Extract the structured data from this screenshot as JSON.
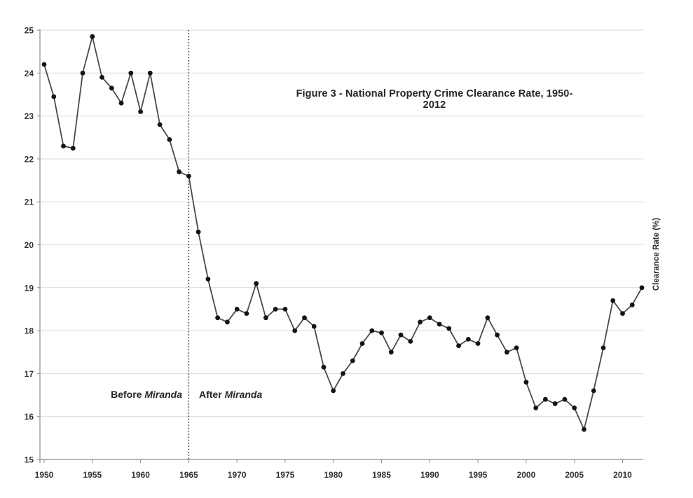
{
  "figure": {
    "title": "Figure 3 - National Property Crime Clearance Rate, 1950-2012",
    "right_axis_label": "Clearance Rate (%)",
    "annotations": {
      "before_prefix": "Before ",
      "before_italic": "Miranda",
      "after_prefix": "After ",
      "after_italic": "Miranda"
    }
  },
  "colors": {
    "line": "#4a4a4a",
    "marker": "#141414",
    "gridline": "#d9d9d9",
    "axis": "#8c8c8c",
    "tick_text": "#333333",
    "vline": "#1a1a1a"
  },
  "chart_data": {
    "type": "line",
    "title": "Figure 3 - National Property Crime Clearance Rate, 1950-2012",
    "xlabel": "",
    "ylabel": "Clearance Rate (%)",
    "ylim": [
      15,
      25
    ],
    "xlim": [
      1950,
      2012
    ],
    "grid": "horizontal",
    "legend": "none",
    "marker": "filled-circle",
    "yticks": [
      15,
      16,
      17,
      18,
      19,
      20,
      21,
      22,
      23,
      24,
      25
    ],
    "xticks": [
      1950,
      1955,
      1960,
      1965,
      1970,
      1975,
      1980,
      1985,
      1990,
      1995,
      2000,
      2005,
      2010
    ],
    "vline": {
      "x": 1965,
      "style": "dotted",
      "label_left": "Before Miranda",
      "label_right": "After Miranda"
    },
    "x": [
      1950,
      1951,
      1952,
      1953,
      1954,
      1955,
      1956,
      1957,
      1958,
      1959,
      1960,
      1961,
      1962,
      1963,
      1964,
      1965,
      1966,
      1967,
      1968,
      1969,
      1970,
      1971,
      1972,
      1973,
      1974,
      1975,
      1976,
      1977,
      1978,
      1979,
      1980,
      1981,
      1982,
      1983,
      1984,
      1985,
      1986,
      1987,
      1988,
      1989,
      1990,
      1991,
      1992,
      1993,
      1994,
      1995,
      1996,
      1997,
      1998,
      1999,
      2000,
      2001,
      2002,
      2003,
      2004,
      2005,
      2006,
      2007,
      2008,
      2009,
      2010,
      2011,
      2012
    ],
    "values": [
      24.2,
      23.45,
      22.3,
      22.25,
      24.0,
      24.85,
      23.9,
      23.65,
      23.3,
      24.0,
      23.1,
      24.0,
      22.8,
      22.45,
      21.7,
      21.6,
      20.3,
      19.2,
      18.3,
      18.2,
      18.5,
      18.4,
      19.1,
      18.3,
      18.5,
      18.5,
      18.0,
      18.3,
      18.1,
      17.15,
      16.6,
      17.0,
      17.3,
      17.7,
      18.0,
      17.95,
      17.5,
      17.9,
      17.75,
      18.2,
      18.3,
      18.15,
      18.05,
      17.65,
      17.8,
      17.7,
      18.3,
      17.9,
      17.5,
      17.6,
      16.8,
      16.2,
      16.4,
      16.3,
      16.4,
      16.2,
      15.7,
      16.6,
      17.6,
      18.7,
      18.4,
      18.6,
      19.0
    ]
  }
}
